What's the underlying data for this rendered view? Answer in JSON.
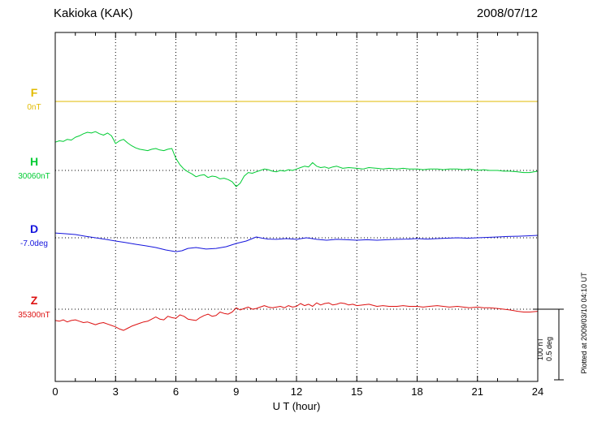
{
  "header": {
    "title": "Kakioka (KAK)",
    "date": "2008/07/12"
  },
  "axis": {
    "xlabel": "U T (hour)"
  },
  "scalebar": {
    "lines": [
      "100 nT",
      "0.5 deg"
    ]
  },
  "footer": {
    "plotted_at": "Plotted at 2009/03/10 04:10 UT"
  },
  "chart_data": {
    "type": "line",
    "title": "Kakioka (KAK) geomagnetic field magnetogram, 2008/07/12",
    "xlabel": "U T (hour)",
    "x_range": [
      0,
      24
    ],
    "x_ticks": [
      0,
      3,
      6,
      9,
      12,
      15,
      18,
      21,
      24
    ],
    "x_minor_tick_interval": 1,
    "grid": "vertical dotted lines every 3 h; horizontal dotted baseline per component",
    "scale_bar": {
      "nT_per_division": 100,
      "deg_per_division": 0.5
    },
    "note": "each series point is [hour UT, offset from that component baseline in its unit]",
    "series": [
      {
        "name": "F",
        "unit": "nT",
        "baseline_value": 0,
        "baseline_label": "0nT",
        "color": "#e2bb00",
        "points": [
          [
            0,
            0
          ],
          [
            3,
            0
          ],
          [
            6,
            0
          ],
          [
            9,
            0
          ],
          [
            12,
            0
          ],
          [
            15,
            0
          ],
          [
            18,
            0
          ],
          [
            21,
            0
          ],
          [
            24,
            0
          ]
        ]
      },
      {
        "name": "H",
        "unit": "nT",
        "baseline_value": 30060,
        "baseline_label": "30060nT",
        "color": "#00cc33",
        "points": [
          [
            0,
            40
          ],
          [
            0.2,
            42
          ],
          [
            0.4,
            41
          ],
          [
            0.6,
            44
          ],
          [
            0.8,
            43
          ],
          [
            1,
            47
          ],
          [
            1.2,
            49
          ],
          [
            1.4,
            52
          ],
          [
            1.6,
            54
          ],
          [
            1.8,
            53
          ],
          [
            2,
            55
          ],
          [
            2.2,
            52
          ],
          [
            2.4,
            50
          ],
          [
            2.6,
            53
          ],
          [
            2.8,
            49
          ],
          [
            3,
            38
          ],
          [
            3.2,
            42
          ],
          [
            3.4,
            44
          ],
          [
            3.6,
            39
          ],
          [
            3.8,
            35
          ],
          [
            4,
            32
          ],
          [
            4.2,
            30
          ],
          [
            4.4,
            29
          ],
          [
            4.6,
            28
          ],
          [
            4.8,
            30
          ],
          [
            5,
            31
          ],
          [
            5.2,
            29
          ],
          [
            5.4,
            28
          ],
          [
            5.6,
            30
          ],
          [
            5.8,
            31
          ],
          [
            6,
            17
          ],
          [
            6.2,
            8
          ],
          [
            6.4,
            2
          ],
          [
            6.6,
            -2
          ],
          [
            6.8,
            -5
          ],
          [
            7,
            -9
          ],
          [
            7.2,
            -7
          ],
          [
            7.4,
            -6
          ],
          [
            7.6,
            -10
          ],
          [
            7.8,
            -8
          ],
          [
            8,
            -9
          ],
          [
            8.2,
            -12
          ],
          [
            8.4,
            -11
          ],
          [
            8.6,
            -13
          ],
          [
            8.8,
            -16
          ],
          [
            9,
            -23
          ],
          [
            9.2,
            -18
          ],
          [
            9.4,
            -8
          ],
          [
            9.6,
            -3
          ],
          [
            9.8,
            -4
          ],
          [
            10,
            -2
          ],
          [
            10.2,
            0
          ],
          [
            10.4,
            2
          ],
          [
            10.6,
            1
          ],
          [
            10.8,
            -1
          ],
          [
            11,
            -2
          ],
          [
            11.2,
            0
          ],
          [
            11.4,
            -1
          ],
          [
            11.6,
            1
          ],
          [
            11.8,
            0
          ],
          [
            12,
            2
          ],
          [
            12.2,
            4
          ],
          [
            12.4,
            6
          ],
          [
            12.6,
            5
          ],
          [
            12.8,
            11
          ],
          [
            13,
            6
          ],
          [
            13.2,
            4
          ],
          [
            13.4,
            5
          ],
          [
            13.6,
            3
          ],
          [
            13.8,
            5
          ],
          [
            14,
            6
          ],
          [
            14.3,
            3
          ],
          [
            14.6,
            4
          ],
          [
            15,
            3
          ],
          [
            15.3,
            2
          ],
          [
            15.6,
            4
          ],
          [
            16,
            3
          ],
          [
            16.3,
            2
          ],
          [
            16.6,
            3
          ],
          [
            17,
            2
          ],
          [
            17.3,
            3
          ],
          [
            17.6,
            2
          ],
          [
            18,
            2
          ],
          [
            18.3,
            1
          ],
          [
            18.6,
            2
          ],
          [
            19,
            2
          ],
          [
            19.3,
            1
          ],
          [
            19.6,
            2
          ],
          [
            20,
            2
          ],
          [
            20.3,
            1
          ],
          [
            20.6,
            2
          ],
          [
            21,
            0
          ],
          [
            21.3,
            1
          ],
          [
            21.6,
            0
          ],
          [
            22,
            0
          ],
          [
            22.3,
            -1
          ],
          [
            22.6,
            -1
          ],
          [
            23,
            -2
          ],
          [
            23.3,
            -3
          ],
          [
            23.6,
            -3
          ],
          [
            24,
            -1
          ]
        ]
      },
      {
        "name": "D",
        "unit": "deg",
        "baseline_value": -7.0,
        "baseline_label": "-7.0deg",
        "color": "#1515dd",
        "points": [
          [
            0,
            0.034
          ],
          [
            0.5,
            0.029
          ],
          [
            1,
            0.023
          ],
          [
            1.5,
            0.011
          ],
          [
            2,
            0
          ],
          [
            2.5,
            -0.011
          ],
          [
            3,
            -0.023
          ],
          [
            3.5,
            -0.034
          ],
          [
            4,
            -0.046
          ],
          [
            4.5,
            -0.057
          ],
          [
            5,
            -0.069
          ],
          [
            5.5,
            -0.086
          ],
          [
            6,
            -0.098
          ],
          [
            6.3,
            -0.092
          ],
          [
            6.6,
            -0.075
          ],
          [
            7,
            -0.069
          ],
          [
            7.5,
            -0.08
          ],
          [
            8,
            -0.075
          ],
          [
            8.5,
            -0.063
          ],
          [
            9,
            -0.04
          ],
          [
            9.5,
            -0.023
          ],
          [
            10,
            0.006
          ],
          [
            10.3,
            -0.003
          ],
          [
            10.6,
            -0.009
          ],
          [
            11,
            -0.011
          ],
          [
            11.5,
            -0.006
          ],
          [
            12,
            -0.011
          ],
          [
            12.5,
            0
          ],
          [
            13,
            -0.011
          ],
          [
            13.5,
            -0.017
          ],
          [
            14,
            -0.011
          ],
          [
            14.5,
            -0.014
          ],
          [
            15,
            -0.017
          ],
          [
            15.5,
            -0.014
          ],
          [
            16,
            -0.017
          ],
          [
            16.5,
            -0.014
          ],
          [
            17,
            -0.011
          ],
          [
            17.5,
            -0.009
          ],
          [
            18,
            -0.006
          ],
          [
            18.5,
            -0.009
          ],
          [
            19,
            -0.006
          ],
          [
            19.5,
            -0.003
          ],
          [
            20,
            0
          ],
          [
            20.5,
            -0.003
          ],
          [
            21,
            0
          ],
          [
            21.5,
            0.003
          ],
          [
            22,
            0.006
          ],
          [
            22.5,
            0.009
          ],
          [
            23,
            0.011
          ],
          [
            23.5,
            0.014
          ],
          [
            24,
            0.017
          ]
        ]
      },
      {
        "name": "Z",
        "unit": "nT",
        "baseline_value": 35300,
        "baseline_label": "35300nT",
        "color": "#dd1111",
        "points": [
          [
            0,
            -16
          ],
          [
            0.2,
            -17
          ],
          [
            0.4,
            -15
          ],
          [
            0.6,
            -18
          ],
          [
            0.8,
            -16
          ],
          [
            1,
            -15
          ],
          [
            1.2,
            -17
          ],
          [
            1.4,
            -19
          ],
          [
            1.6,
            -18
          ],
          [
            1.8,
            -20
          ],
          [
            2,
            -22
          ],
          [
            2.2,
            -20
          ],
          [
            2.4,
            -19
          ],
          [
            2.6,
            -21
          ],
          [
            2.8,
            -23
          ],
          [
            3,
            -25
          ],
          [
            3.2,
            -28
          ],
          [
            3.4,
            -30
          ],
          [
            3.6,
            -27
          ],
          [
            3.8,
            -24
          ],
          [
            4,
            -22
          ],
          [
            4.2,
            -20
          ],
          [
            4.4,
            -18
          ],
          [
            4.6,
            -17
          ],
          [
            4.8,
            -14
          ],
          [
            5,
            -11
          ],
          [
            5.2,
            -14
          ],
          [
            5.4,
            -15
          ],
          [
            5.6,
            -10
          ],
          [
            5.8,
            -12
          ],
          [
            6,
            -13
          ],
          [
            6.2,
            -8
          ],
          [
            6.4,
            -10
          ],
          [
            6.6,
            -14
          ],
          [
            6.8,
            -15
          ],
          [
            7,
            -16
          ],
          [
            7.2,
            -12
          ],
          [
            7.4,
            -9
          ],
          [
            7.6,
            -7
          ],
          [
            7.8,
            -10
          ],
          [
            8,
            -9
          ],
          [
            8.2,
            -4
          ],
          [
            8.4,
            -6
          ],
          [
            8.6,
            -7
          ],
          [
            8.8,
            -4
          ],
          [
            9,
            2
          ],
          [
            9.2,
            -1
          ],
          [
            9.4,
            1
          ],
          [
            9.6,
            3
          ],
          [
            9.8,
            0
          ],
          [
            10,
            1
          ],
          [
            10.2,
            3
          ],
          [
            10.4,
            5
          ],
          [
            10.6,
            3
          ],
          [
            10.8,
            2
          ],
          [
            11,
            3
          ],
          [
            11.2,
            4
          ],
          [
            11.4,
            2
          ],
          [
            11.6,
            5
          ],
          [
            11.8,
            3
          ],
          [
            12,
            4
          ],
          [
            12.2,
            8
          ],
          [
            12.4,
            5
          ],
          [
            12.6,
            7
          ],
          [
            12.8,
            4
          ],
          [
            13,
            9
          ],
          [
            13.2,
            6
          ],
          [
            13.4,
            8
          ],
          [
            13.6,
            9
          ],
          [
            13.8,
            6
          ],
          [
            14,
            7
          ],
          [
            14.2,
            9
          ],
          [
            14.4,
            8
          ],
          [
            14.6,
            6
          ],
          [
            14.8,
            7
          ],
          [
            15,
            5
          ],
          [
            15.3,
            6
          ],
          [
            15.6,
            7
          ],
          [
            16,
            4
          ],
          [
            16.3,
            5
          ],
          [
            16.6,
            4
          ],
          [
            17,
            4
          ],
          [
            17.3,
            5
          ],
          [
            17.6,
            4
          ],
          [
            18,
            4
          ],
          [
            18.3,
            3
          ],
          [
            18.6,
            4
          ],
          [
            19,
            5
          ],
          [
            19.3,
            4
          ],
          [
            19.6,
            3
          ],
          [
            20,
            4
          ],
          [
            20.3,
            3
          ],
          [
            20.6,
            2
          ],
          [
            21,
            3
          ],
          [
            21.3,
            2
          ],
          [
            21.6,
            2
          ],
          [
            22,
            1
          ],
          [
            22.3,
            0
          ],
          [
            22.6,
            -1
          ],
          [
            23,
            -3
          ],
          [
            23.3,
            -4
          ],
          [
            23.6,
            -4
          ],
          [
            24,
            -3
          ]
        ]
      }
    ]
  }
}
